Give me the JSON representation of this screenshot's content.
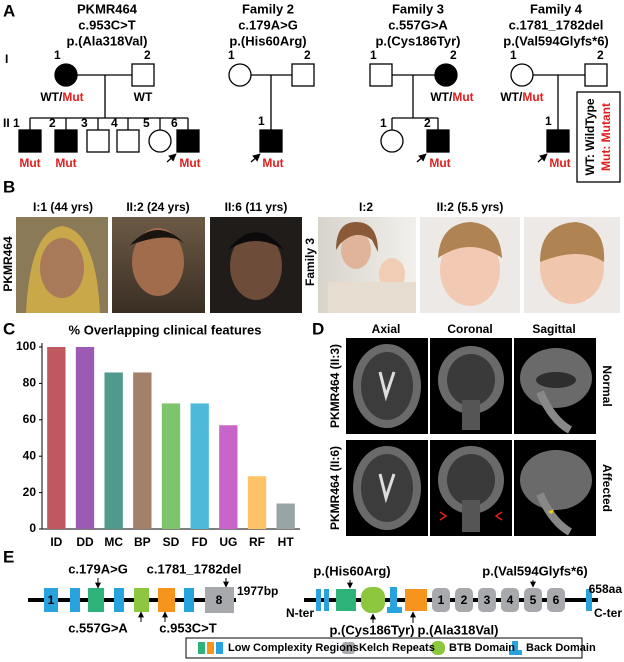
{
  "panels": {
    "a": "A",
    "b": "B",
    "c": "C",
    "d": "D",
    "e": "E"
  },
  "generations": [
    "I",
    "II"
  ],
  "pedigrees": [
    {
      "title": "PKMR464",
      "variant": "c.953C>T",
      "protein": "p.(Ala318Val)",
      "ids": [
        "1",
        "2",
        "1",
        "2",
        "3",
        "4",
        "5",
        "6"
      ],
      "genotypes": [
        "WT/",
        "Mut",
        "WT",
        "Mut",
        "Mut",
        "Mut"
      ]
    },
    {
      "title": "Family 2",
      "variant": "c.179A>G",
      "protein": "p.(His60Arg)",
      "ids": [
        "1",
        "2",
        "1"
      ],
      "genotypes": [
        "Mut"
      ]
    },
    {
      "title": "Family 3",
      "variant": "c.557G>A",
      "protein": "p.(Cys186Tyr)",
      "ids": [
        "1",
        "2",
        "1",
        "2"
      ],
      "genotypes": [
        "WT/",
        "Mut",
        "Mut"
      ]
    },
    {
      "title": "Family 4",
      "variant": "c.1781_1782del",
      "protein": "p.(Val594Glyfs*6)",
      "ids": [
        "1",
        "2",
        "1"
      ],
      "genotypes": [
        "WT/",
        "Mut",
        "Mut"
      ]
    }
  ],
  "pedigree_legend": [
    "WT: WildType",
    "Mut: Mutant"
  ],
  "photos": {
    "family_labels": [
      "PKMR464",
      "Family 3"
    ],
    "captions": [
      "I:1 (44 yrs)",
      "II:2 (24 yrs)",
      "II:6 (11 yrs)",
      "I:2",
      "II:2 (5.5 yrs)"
    ]
  },
  "chart_data": {
    "type": "bar",
    "title": "% Overlapping clinical features",
    "categories": [
      "ID",
      "DD",
      "MC",
      "BP",
      "SD",
      "FD",
      "UG",
      "RF",
      "HT"
    ],
    "values": [
      100,
      100,
      86,
      86,
      69,
      69,
      57,
      29,
      14
    ],
    "colors": [
      "#c0585f",
      "#9b5bb5",
      "#4f9a8c",
      "#a3806a",
      "#7dc46c",
      "#4fb9d9",
      "#c865c8",
      "#ffc266",
      "#98a4a5"
    ],
    "ylim": [
      0,
      100
    ],
    "yticks": [
      0,
      20,
      40,
      60,
      80,
      100
    ]
  },
  "mri": {
    "columns": [
      "Axial",
      "Coronal",
      "Sagittal"
    ],
    "rows": [
      "PKMR464 (II:3)",
      "PKMR464 (II:6)"
    ],
    "status": [
      "Normal",
      "Affected"
    ]
  },
  "gene": {
    "exons": [
      "1",
      "8"
    ],
    "length": "1977bp",
    "variants": [
      "c.179A>G",
      "c.1781_1782del",
      "c.557G>A",
      "c.953C>T"
    ]
  },
  "protein": {
    "length": "658aa",
    "n_term": "N-ter",
    "c_term": "C-ter",
    "kelch": [
      "1",
      "2",
      "3",
      "4",
      "5",
      "6"
    ],
    "variants": [
      "p.(His60Arg)",
      "p.(Val594Glyfs*6)",
      "p.(Cys186Tyr)",
      "p.(Ala318Val)"
    ]
  },
  "domain_legend": [
    "Low Complexity Regions",
    "Kelch Repeats",
    "BTB Domain",
    "Back Domain"
  ]
}
